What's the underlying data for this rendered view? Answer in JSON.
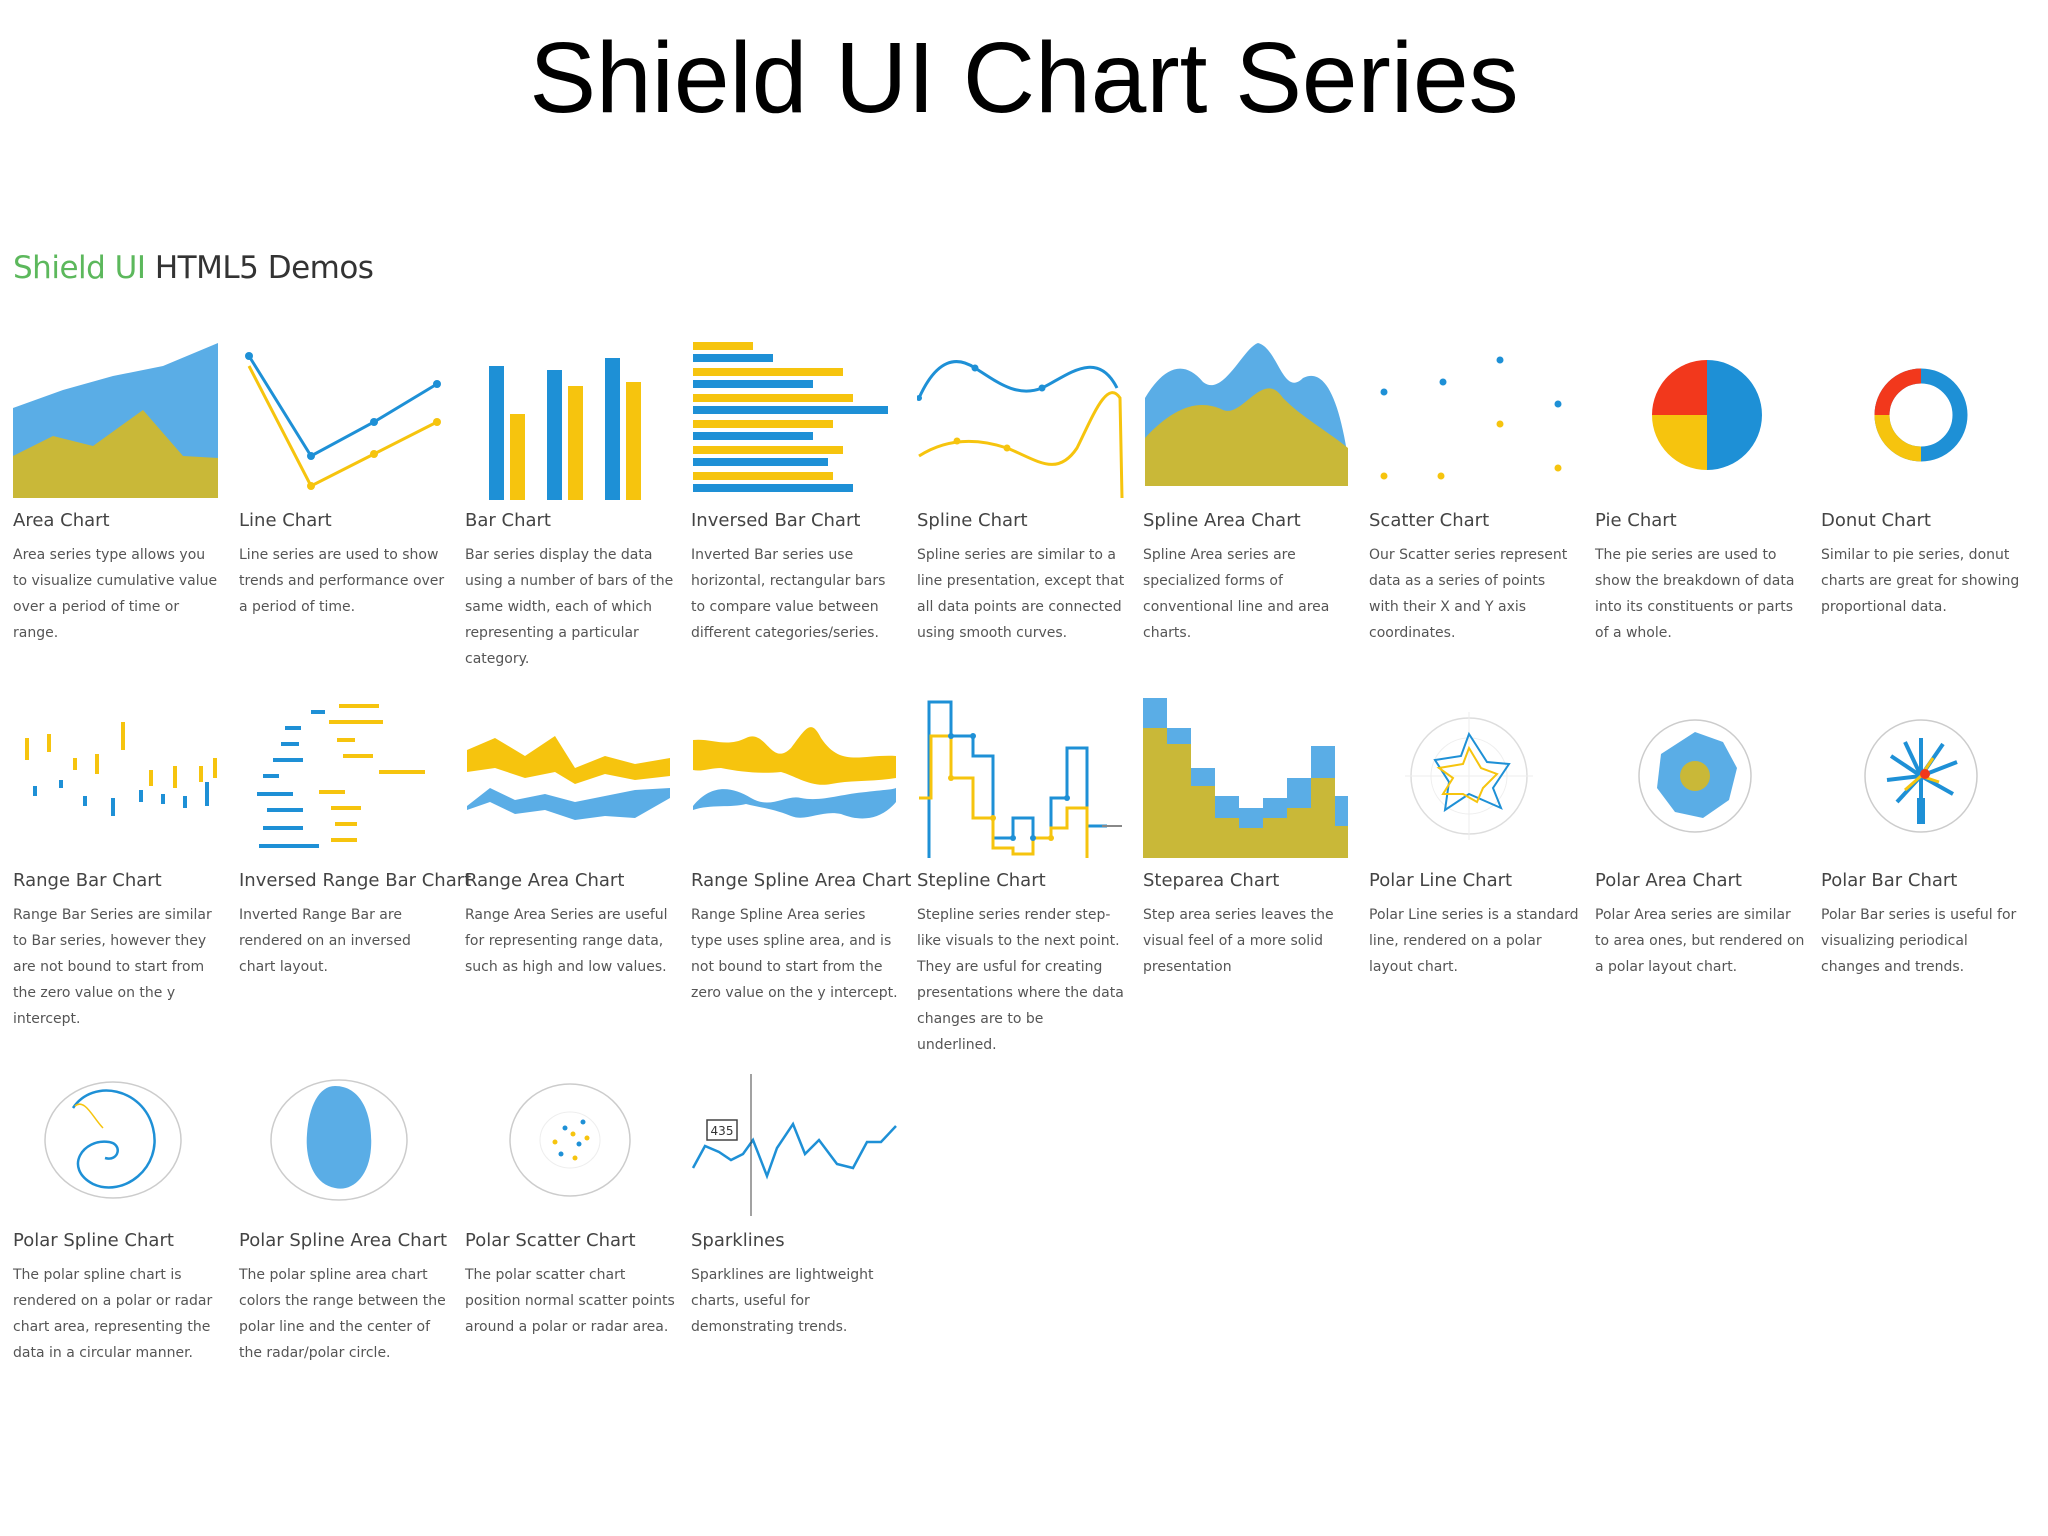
{
  "slide": {
    "title": "Shield UI Chart Series"
  },
  "header": {
    "brand_green": "Shield UI",
    "brand_dark": "HTML5 Demos"
  },
  "colors": {
    "blue": "#1e90d6",
    "lightblue": "#5aade6",
    "yellow": "#f6c40e",
    "olive": "#c9b838",
    "red": "#f2381c"
  },
  "cards": [
    {
      "title": "Area Chart",
      "desc": "Area series type allows you to visualize cumulative value over a period of time or range."
    },
    {
      "title": "Line Chart",
      "desc": "Line series are used to show trends and performance over a period of time."
    },
    {
      "title": "Bar Chart",
      "desc": "Bar series display the data using a number of bars of the same width, each of which representing a particular category."
    },
    {
      "title": "Inversed Bar Chart",
      "desc": "Inverted Bar series use horizontal, rectangular bars to compare value between different categories/series."
    },
    {
      "title": "Spline Chart",
      "desc": "Spline series are similar to a line presentation, except that all data points are connected using smooth curves."
    },
    {
      "title": "Spline Area Chart",
      "desc": "Spline Area series are specialized forms of conventional line and area charts."
    },
    {
      "title": "Scatter Chart",
      "desc": "Our Scatter series represent data as a series of points with their X and Y axis coordinates."
    },
    {
      "title": "Pie Chart",
      "desc": "The pie series are used to show the breakdown of data into its constituents or parts of a whole."
    },
    {
      "title": "Donut Chart",
      "desc": "Similar to pie series, donut charts are great for showing proportional data."
    },
    {
      "title": "Range Bar Chart",
      "desc": "Range Bar Series are similar to Bar series, however they are not bound to start from the zero value on the y intercept."
    },
    {
      "title": "Inversed Range Bar Chart",
      "desc": "Inverted Range Bar are rendered on an inversed chart layout."
    },
    {
      "title": "Range Area Chart",
      "desc": "Range Area Series are useful for representing range data, such as high and low values."
    },
    {
      "title": "Range Spline Area Chart",
      "desc": "Range Spline Area series type uses spline area, and is not bound to start from the zero value on the y intercept."
    },
    {
      "title": "Stepline Chart",
      "desc": "Stepline series render step-like visuals to the next point. They are usful for creating presentations where the data changes are to be underlined."
    },
    {
      "title": "Steparea Chart",
      "desc": "Step area series leaves the visual feel of a more solid presentation"
    },
    {
      "title": "Polar Line Chart",
      "desc": "Polar Line series is a standard line, rendered on a polar layout chart."
    },
    {
      "title": "Polar Area Chart",
      "desc": "Polar Area series are similar to area ones, but rendered on a polar layout chart."
    },
    {
      "title": "Polar Bar Chart",
      "desc": "Polar Bar series is useful for visualizing periodical changes and trends."
    },
    {
      "title": "Polar Spline Chart",
      "desc": "The polar spline chart is rendered on a polar or radar chart area, representing the data in a circular manner."
    },
    {
      "title": "Polar Spline Area Chart",
      "desc": "The polar spline area chart colors the range between the polar line and the center of the radar/polar circle."
    },
    {
      "title": "Polar Scatter Chart",
      "desc": "The polar scatter chart position normal scatter points around a polar or radar area."
    },
    {
      "title": "Sparklines",
      "desc": "Sparklines are lightweight charts, useful for demonstrating trends.",
      "tooltip_value": "435"
    }
  ]
}
